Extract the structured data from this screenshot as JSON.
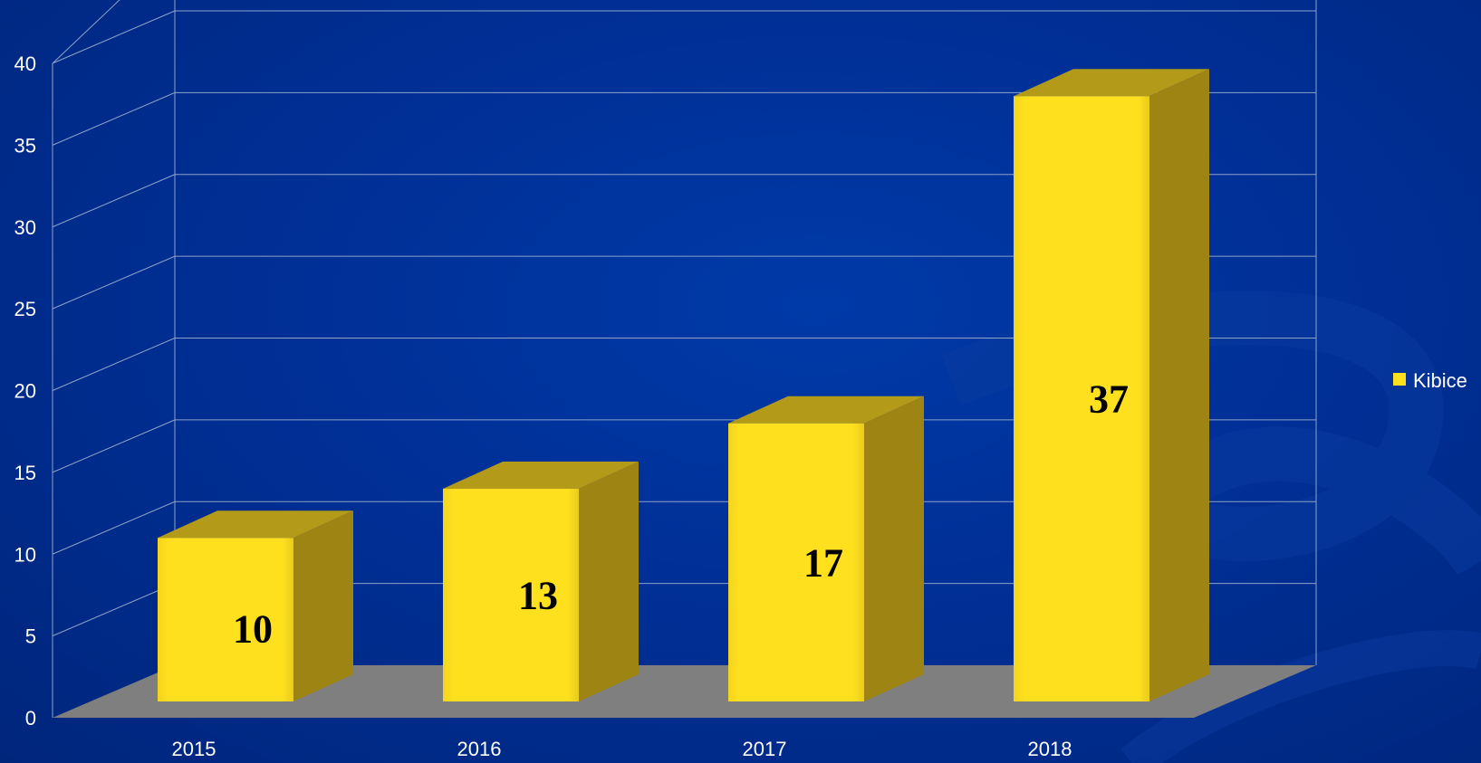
{
  "chart_data": {
    "type": "bar",
    "categories": [
      "2015",
      "2016",
      "2017",
      "2018"
    ],
    "series": [
      {
        "name": "Kibice",
        "values": [
          10,
          13,
          17,
          37
        ]
      }
    ],
    "ylim": [
      0,
      40
    ],
    "yticks": [
      0,
      5,
      10,
      15,
      20,
      25,
      30,
      35,
      40
    ],
    "grid": true,
    "style": "3d-column",
    "legend_position": "right",
    "colors": {
      "bar_front": "#ffe01f",
      "bar_side": "#9e8413",
      "bar_top": "#b39a18",
      "floor": "#7f7f7f",
      "gridline": "#8da2c8",
      "text": "#ffffff",
      "data_label": "#000000"
    }
  }
}
